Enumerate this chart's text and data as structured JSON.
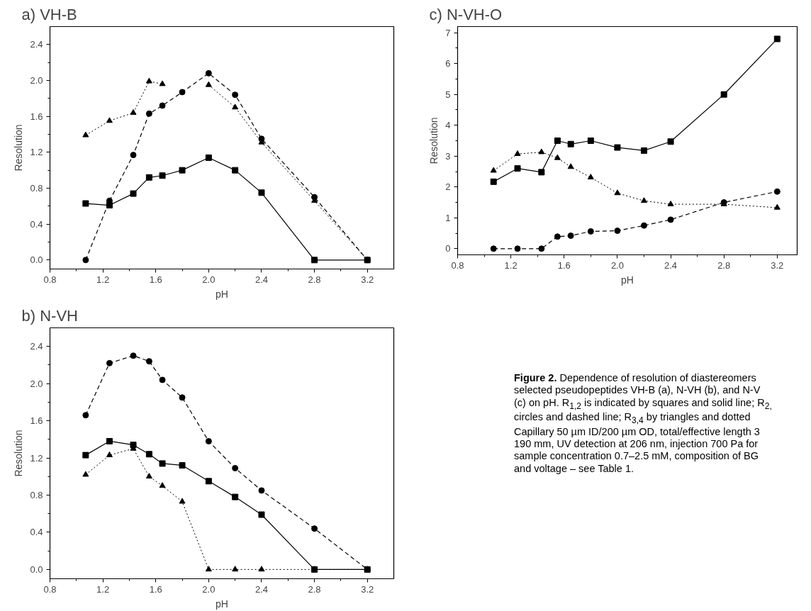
{
  "chart_data": [
    {
      "type": "line",
      "title": "a) VH-B",
      "xlabel": "pH",
      "ylabel": "Resolution",
      "xlim": [
        0.8,
        3.4
      ],
      "ylim": [
        -0.1,
        2.6
      ],
      "xticks": [
        {
          "value": 0.8,
          "label": "0.8"
        },
        {
          "value": 1.2,
          "label": "1.2"
        },
        {
          "value": 1.6,
          "label": "1.6"
        },
        {
          "value": 2.0,
          "label": "2.0"
        },
        {
          "value": 2.4,
          "label": "2.4"
        },
        {
          "value": 2.8,
          "label": "2.8"
        },
        {
          "value": 3.2,
          "label": "3.2"
        }
      ],
      "yticks": [
        {
          "value": 0.0,
          "label": "0.0"
        },
        {
          "value": 0.4,
          "label": "0.4"
        },
        {
          "value": 0.8,
          "label": "0.8"
        },
        {
          "value": 1.2,
          "label": "1.2"
        },
        {
          "value": 1.6,
          "label": "1.6"
        },
        {
          "value": 2.0,
          "label": "2.0"
        },
        {
          "value": 2.4,
          "label": "2.4"
        }
      ],
      "x": [
        1.07,
        1.25,
        1.43,
        1.55,
        1.65,
        1.8,
        2.0,
        2.2,
        2.4,
        2.8,
        3.2
      ],
      "series": [
        {
          "color": "#000000",
          "marker": "square",
          "line_style": "solid",
          "values": [
            0.63,
            0.61,
            0.74,
            0.92,
            0.94,
            1.0,
            1.14,
            1.0,
            0.75,
            0.0,
            0.0
          ]
        },
        {
          "color": "#000000",
          "marker": "circle",
          "line_style": "dashed",
          "values": [
            0.0,
            0.66,
            1.17,
            1.63,
            1.72,
            1.87,
            2.08,
            1.84,
            1.35,
            0.7,
            0.0
          ]
        },
        {
          "color": "#000000",
          "marker": "triangle",
          "line_style": "dotted",
          "values": [
            1.39,
            1.55,
            1.64,
            1.99,
            1.96,
            null,
            1.95,
            1.7,
            1.31,
            0.66,
            0.0
          ]
        }
      ]
    },
    {
      "type": "line",
      "title": "c) N-VH-O",
      "xlabel": "pH",
      "ylabel": "Resolution",
      "xlim": [
        0.8,
        3.35
      ],
      "ylim": [
        -0.2,
        7.2
      ],
      "xticks": [
        {
          "value": 0.8,
          "label": "0.8"
        },
        {
          "value": 1.2,
          "label": "1.2"
        },
        {
          "value": 1.6,
          "label": "1.6"
        },
        {
          "value": 2.0,
          "label": "2.0"
        },
        {
          "value": 2.4,
          "label": "2.4"
        },
        {
          "value": 2.8,
          "label": "2.8"
        },
        {
          "value": 3.2,
          "label": "3.2"
        }
      ],
      "yticks": [
        0,
        1,
        2,
        3,
        4,
        5,
        6,
        7
      ],
      "x": [
        1.07,
        1.25,
        1.43,
        1.55,
        1.65,
        1.8,
        2.0,
        2.2,
        2.4,
        2.8,
        3.2
      ],
      "series": [
        {
          "color": "#000000",
          "marker": "square",
          "line_style": "solid",
          "values": [
            2.17,
            2.6,
            2.48,
            3.5,
            3.39,
            3.5,
            3.28,
            3.18,
            3.47,
            5.0,
            6.8
          ]
        },
        {
          "color": "#000000",
          "marker": "circle",
          "line_style": "dashed",
          "values": [
            0.0,
            0.0,
            0.0,
            0.39,
            0.42,
            0.56,
            0.58,
            0.75,
            0.94,
            1.5,
            1.85
          ]
        },
        {
          "color": "#000000",
          "marker": "triangle",
          "line_style": "dotted",
          "values": [
            2.53,
            3.07,
            3.13,
            2.94,
            2.65,
            2.31,
            1.8,
            1.55,
            1.44,
            1.44,
            1.33
          ]
        }
      ]
    },
    {
      "type": "line",
      "title": "b) N-VH",
      "xlabel": "pH",
      "ylabel": "Resolution",
      "xlim": [
        0.8,
        3.4
      ],
      "ylim": [
        -0.1,
        2.6
      ],
      "xticks": [
        {
          "value": 0.8,
          "label": "0.8"
        },
        {
          "value": 1.2,
          "label": "1.2"
        },
        {
          "value": 1.6,
          "label": "1.6"
        },
        {
          "value": 2.0,
          "label": "2.0"
        },
        {
          "value": 2.4,
          "label": "2.4"
        },
        {
          "value": 2.8,
          "label": "2.8"
        },
        {
          "value": 3.2,
          "label": "3.2"
        }
      ],
      "yticks": [
        {
          "value": 0.0,
          "label": "0.0"
        },
        {
          "value": 0.4,
          "label": "0.4"
        },
        {
          "value": 0.8,
          "label": "0.8"
        },
        {
          "value": 1.2,
          "label": "1.2"
        },
        {
          "value": 1.6,
          "label": "1.6"
        },
        {
          "value": 2.0,
          "label": "2.0"
        },
        {
          "value": 2.4,
          "label": "2.4"
        }
      ],
      "x": [
        1.07,
        1.25,
        1.43,
        1.55,
        1.65,
        1.8,
        2.0,
        2.2,
        2.4,
        2.8,
        3.2
      ],
      "series": [
        {
          "color": "#000000",
          "marker": "square",
          "line_style": "solid",
          "values": [
            1.23,
            1.38,
            1.34,
            1.24,
            1.14,
            1.12,
            0.95,
            0.78,
            0.59,
            0.0,
            0.0
          ]
        },
        {
          "color": "#000000",
          "marker": "circle",
          "line_style": "dashed",
          "values": [
            1.66,
            2.22,
            2.3,
            2.24,
            2.04,
            1.85,
            1.38,
            1.09,
            0.85,
            0.44,
            0.0
          ]
        },
        {
          "color": "#000000",
          "marker": "triangle",
          "line_style": "dotted",
          "values": [
            1.02,
            1.23,
            1.3,
            1.0,
            0.9,
            0.73,
            0.0,
            0.0,
            0.0,
            0.0,
            0.0
          ]
        }
      ]
    },
    {
      "type": "other",
      "annotations": [
        "Figure 2. Dependence of resolution of diastereomers",
        "selected pseudopeptides VH-B (a), N-VH (b), and N-V",
        "(c) on pH. R$_{1,2}$ is indicated by squares and solid line; R$_{2,}$",
        "circles and dashed line; R$_{3,4}$ by triangles and dotted",
        "Capillary 50 µm ID/200 µm OD, total/effective length 3",
        "190 mm, UV detection at 206 nm, injection 700 Pa for",
        "sample concentration 0.7–2.5 mM, composition of BG",
        "and voltage – see Table 1."
      ]
    }
  ]
}
